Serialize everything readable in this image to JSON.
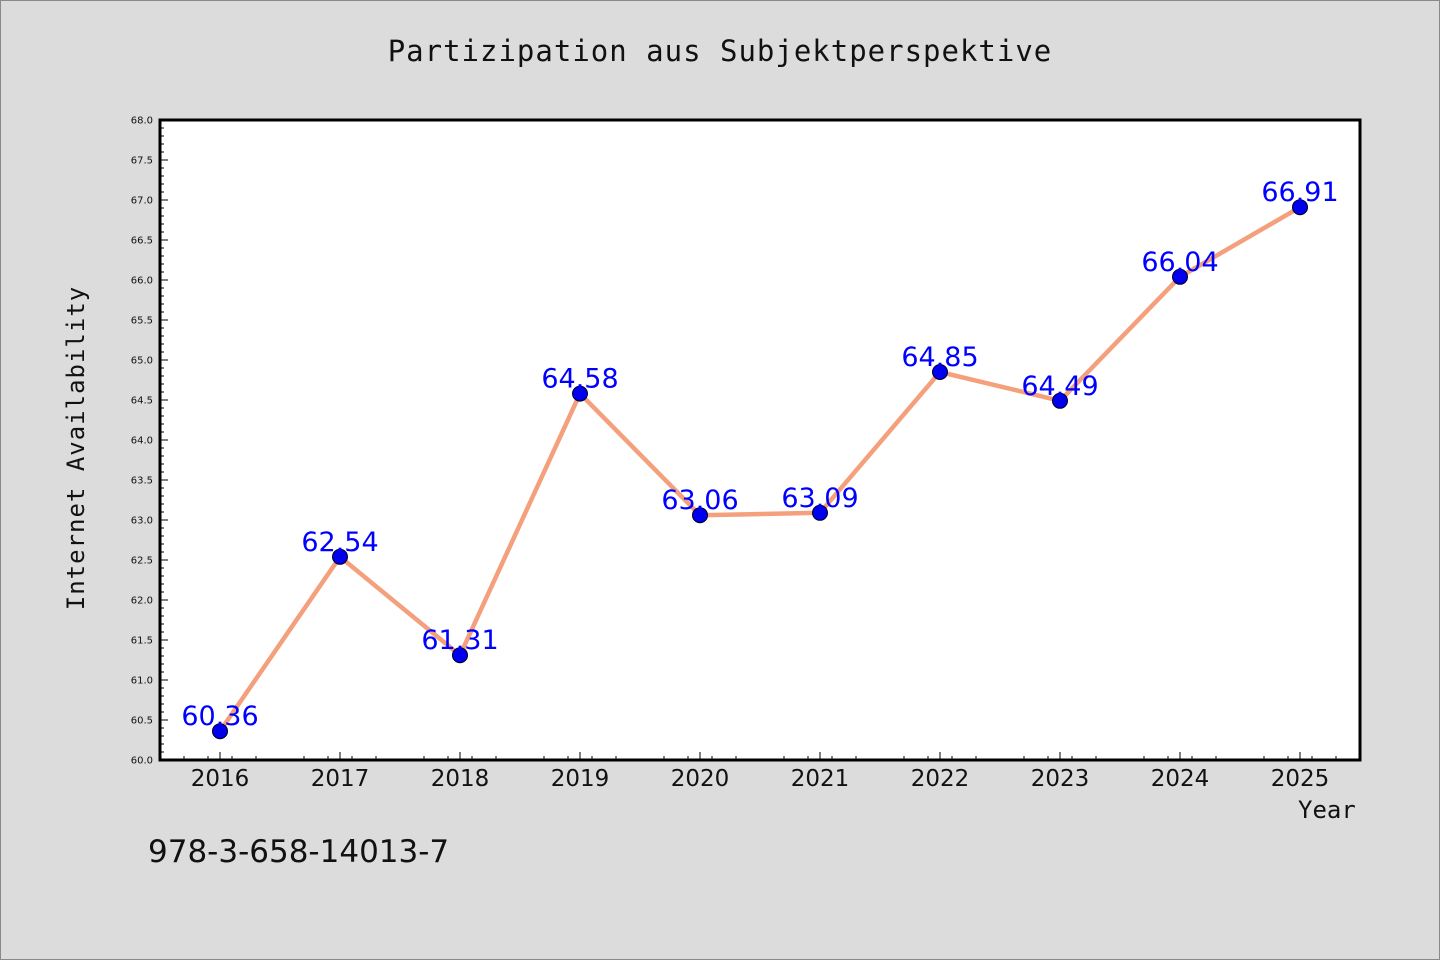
{
  "colors": {
    "background": "#dcdcdc",
    "line": "#f4a07c",
    "marker": "#0000ee",
    "data_label": "#0000ff"
  },
  "footer": {
    "isbn": "978-3-658-14013-7"
  },
  "chart_data": {
    "type": "line",
    "title": "Partizipation aus Subjektperspektive",
    "xlabel": "Year",
    "ylabel": "Internet Availability",
    "x": [
      "2016",
      "2017",
      "2018",
      "2019",
      "2020",
      "2021",
      "2022",
      "2023",
      "2024",
      "2025"
    ],
    "series": [
      {
        "values": [
          60.36,
          62.54,
          61.31,
          64.58,
          63.06,
          63.09,
          64.85,
          64.49,
          66.04,
          66.91
        ],
        "labels": [
          "60.36",
          "62.54",
          "61.31",
          "64.58",
          "63.06",
          "63.09",
          "64.85",
          "64.49",
          "66.04",
          "66.91"
        ]
      }
    ],
    "ylim": [
      60.0,
      68.0
    ],
    "yticks": [
      "60.0",
      "60.5",
      "61.0",
      "61.5",
      "62.0",
      "62.5",
      "63.0",
      "63.5",
      "64.0",
      "64.5",
      "65.0",
      "65.5",
      "66.0",
      "66.5",
      "67.0",
      "67.5",
      "68.0"
    ],
    "grid": false,
    "legend": "none"
  }
}
